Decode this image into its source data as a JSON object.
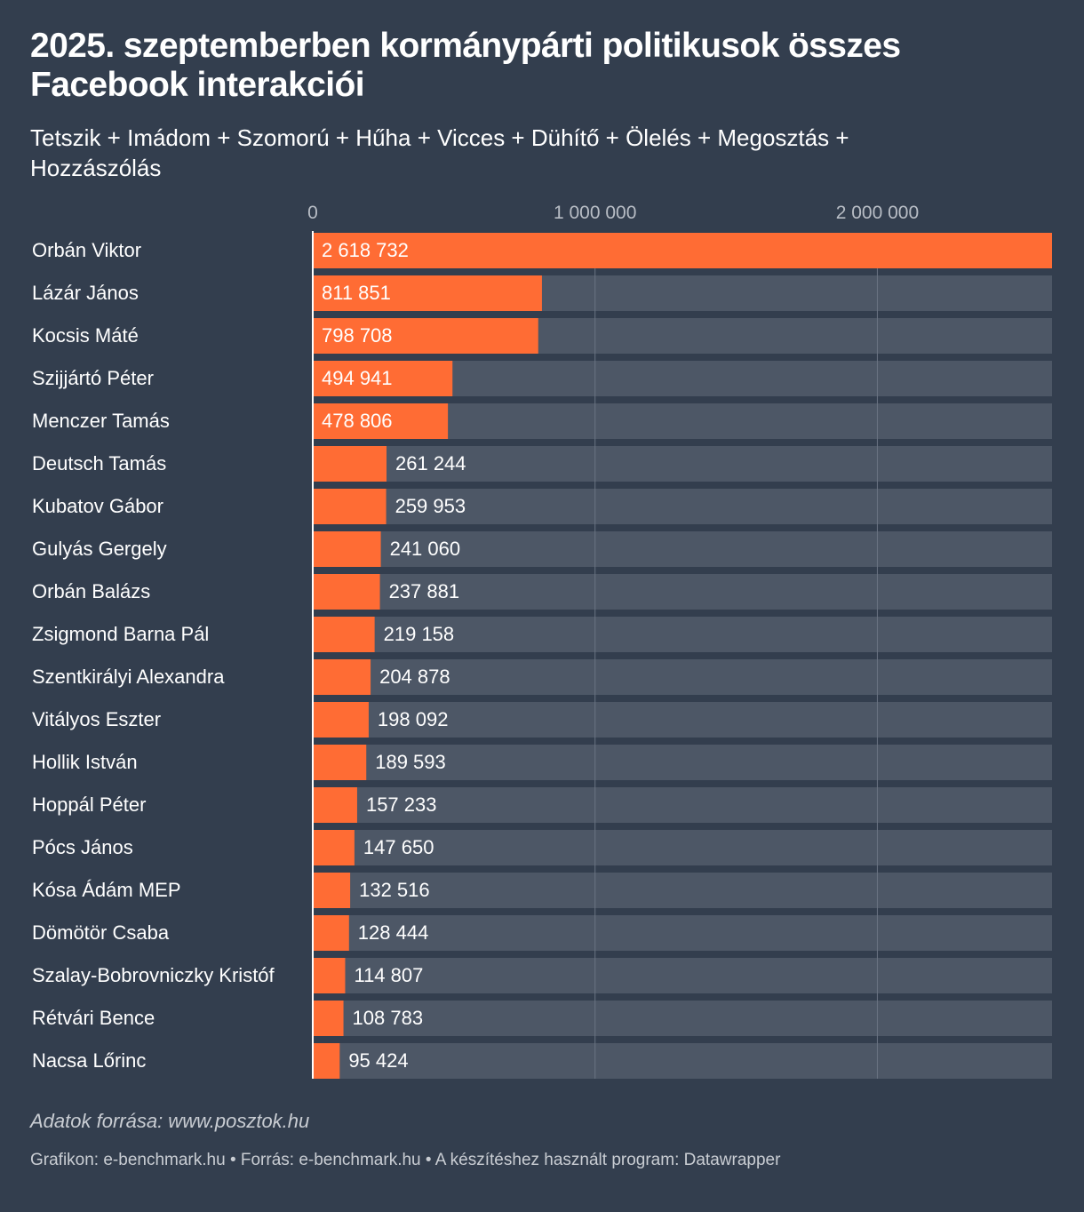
{
  "chart_data": {
    "type": "bar",
    "orientation": "horizontal",
    "title": "2025. szeptemberben kormánypárti politikusok összes Facebook interakciói",
    "subtitle": "Tetszik + Imádom + Szomorú + Hűha + Vicces + Dühítő + Ölelés + Megosztás + Hozzászólás",
    "categories": [
      "Orbán Viktor",
      "Lázár János",
      "Kocsis Máté",
      "Szijjártó Péter",
      "Menczer Tamás",
      "Deutsch Tamás",
      "Kubatov Gábor",
      "Gulyás Gergely",
      "Orbán Balázs",
      "Zsigmond Barna Pál",
      "Szentkirályi Alexandra",
      "Vitályos Eszter",
      "Hollik István",
      "Hoppál Péter",
      "Pócs János",
      "Kósa Ádám MEP",
      "Dömötör Csaba",
      "Szalay-Bobrovniczky Kristóf",
      "Rétvári Bence",
      "Nacsa Lőrinc"
    ],
    "values": [
      2618732,
      811851,
      798708,
      494941,
      478806,
      261244,
      259953,
      241060,
      237881,
      219158,
      204878,
      198092,
      189593,
      157233,
      147650,
      132516,
      128444,
      114807,
      108783,
      95424
    ],
    "value_labels": [
      "2 618 732",
      "811 851",
      "798 708",
      "494 941",
      "478 806",
      "261 244",
      "259 953",
      "241 060",
      "237 881",
      "219 158",
      "204 878",
      "198 092",
      "189 593",
      "157 233",
      "147 650",
      "132 516",
      "128 444",
      "114 807",
      "108 783",
      "95 424"
    ],
    "xlim": [
      0,
      2618732
    ],
    "xticks": [
      0,
      1000000,
      2000000
    ],
    "xtick_labels": [
      "0",
      "1 000 000",
      "2 000 000"
    ],
    "grid": true,
    "colors": {
      "bar": "#ff6c34",
      "track": "#4d5766",
      "grid": "#6a7482",
      "background": "#333e4e",
      "tick_label": "#b8bdc5"
    }
  },
  "notes": "Adatok forrása: www.posztok.hu",
  "footer": "Grafikon: e-benchmark.hu • Forrás: e-benchmark.hu • A készítéshez használt program: Datawrapper"
}
